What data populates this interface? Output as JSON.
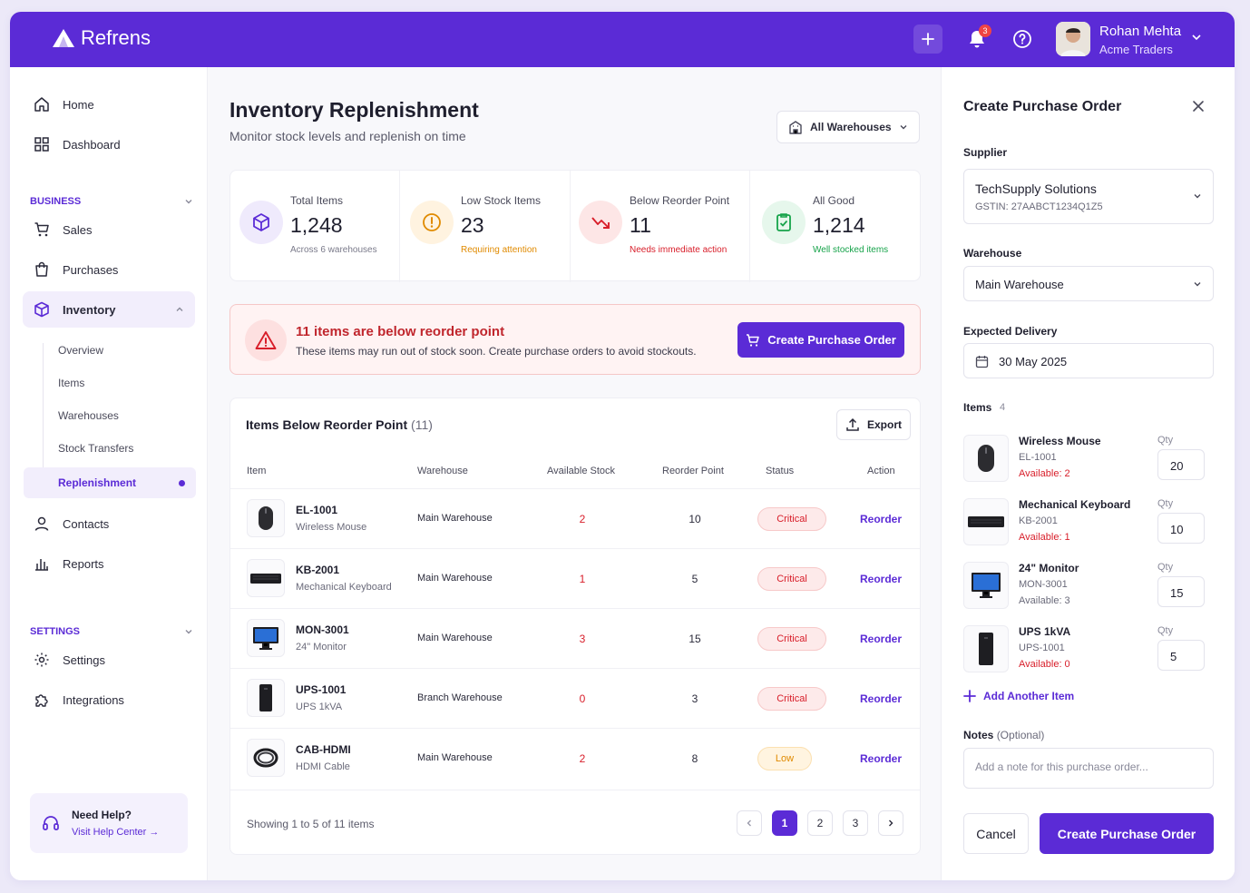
{
  "brand": {
    "name": "Refrens"
  },
  "topbar": {
    "notification_count": "3",
    "user_name": "Rohan Mehta",
    "user_company": "Acme Traders"
  },
  "sidebar": {
    "home": "Home",
    "dashboard": "Dashboard",
    "business_section": "BUSINESS",
    "sales": "Sales",
    "purchases": "Purchases",
    "inventory": "Inventory",
    "inventory_sub": [
      "Overview",
      "Items",
      "Warehouses",
      "Stock Transfers",
      "Replenishment"
    ],
    "contacts": "Contacts",
    "reports": "Reports",
    "settings_section": "SETTINGS",
    "settings": "Settings",
    "integrations": "Integrations",
    "help_title": "Need Help?",
    "help_link": "Visit Help Center"
  },
  "main": {
    "title": "Inventory Replenishment",
    "subtitle": "Monitor stock levels and replenish on time",
    "warehouse_filter": "All Warehouses",
    "stats": [
      {
        "label": "Total Items",
        "value": "1,248",
        "note": "Across 6 warehouses",
        "color": "#7a7a8a"
      },
      {
        "label": "Low Stock Items",
        "value": "23",
        "note": "Requiring attention",
        "color": "#e08a00"
      },
      {
        "label": "Below Reorder Point",
        "value": "11",
        "note": "Needs immediate action",
        "color": "#d81e2a"
      },
      {
        "label": "All Good",
        "value": "1,214",
        "note": "Well stocked items",
        "color": "#16a34a"
      }
    ],
    "alert": {
      "title": "11 items are below reorder point",
      "text": "These items may run out of stock soon. Create purchase orders to avoid stockouts.",
      "button": "Create Purchase Order"
    },
    "table": {
      "title": "Items Below Reorder Point",
      "count": "(11)",
      "export": "Export",
      "columns": [
        "Item",
        "Warehouse",
        "Available Stock",
        "Reorder Point",
        "Status",
        "Action"
      ],
      "rows": [
        {
          "sku": "EL-1001",
          "name": "Wireless Mouse",
          "warehouse": "Main Warehouse",
          "available": "2",
          "reorder_point": "10",
          "status": "Critical",
          "action": "Reorder"
        },
        {
          "sku": "KB-2001",
          "name": "Mechanical Keyboard",
          "warehouse": "Main Warehouse",
          "available": "1",
          "reorder_point": "5",
          "status": "Critical",
          "action": "Reorder"
        },
        {
          "sku": "MON-3001",
          "name": "24\" Monitor",
          "warehouse": "Main Warehouse",
          "available": "3",
          "reorder_point": "15",
          "status": "Critical",
          "action": "Reorder"
        },
        {
          "sku": "UPS-1001",
          "name": "UPS 1kVA",
          "warehouse": "Branch Warehouse",
          "available": "0",
          "reorder_point": "3",
          "status": "Critical",
          "action": "Reorder"
        },
        {
          "sku": "CAB-HDMI",
          "name": "HDMI Cable",
          "warehouse": "Main Warehouse",
          "available": "2",
          "reorder_point": "8",
          "status": "Low",
          "action": "Reorder"
        }
      ],
      "showing": "Showing 1 to 5 of 11 items",
      "pages": [
        "1",
        "2",
        "3"
      ]
    }
  },
  "panel": {
    "title": "Create Purchase Order",
    "supplier_label": "Supplier",
    "supplier_name": "TechSupply Solutions",
    "supplier_gstin": "GSTIN: 27AABCT1234Q1Z5",
    "warehouse_label": "Warehouse",
    "warehouse_value": "Main Warehouse",
    "delivery_label": "Expected Delivery",
    "delivery_value": "30 May 2025",
    "items_label": "Items",
    "items_count": "4",
    "qty_label": "Qty",
    "items": [
      {
        "name": "Wireless Mouse",
        "sku": "EL-1001",
        "available": "Available: 2",
        "qty": "20"
      },
      {
        "name": "Mechanical Keyboard",
        "sku": "KB-2001",
        "available": "Available: 1",
        "qty": "10"
      },
      {
        "name": "24\" Monitor",
        "sku": "MON-3001",
        "available": "Available: 3",
        "qty": "15"
      },
      {
        "name": "UPS 1kVA",
        "sku": "UPS-1001",
        "available": "Available: 0",
        "qty": "5"
      }
    ],
    "add_item": "Add Another Item",
    "notes_label": "Notes",
    "notes_optional": "(Optional)",
    "notes_placeholder": "Add a note for this purchase order...",
    "cancel": "Cancel",
    "create": "Create Purchase Order"
  }
}
